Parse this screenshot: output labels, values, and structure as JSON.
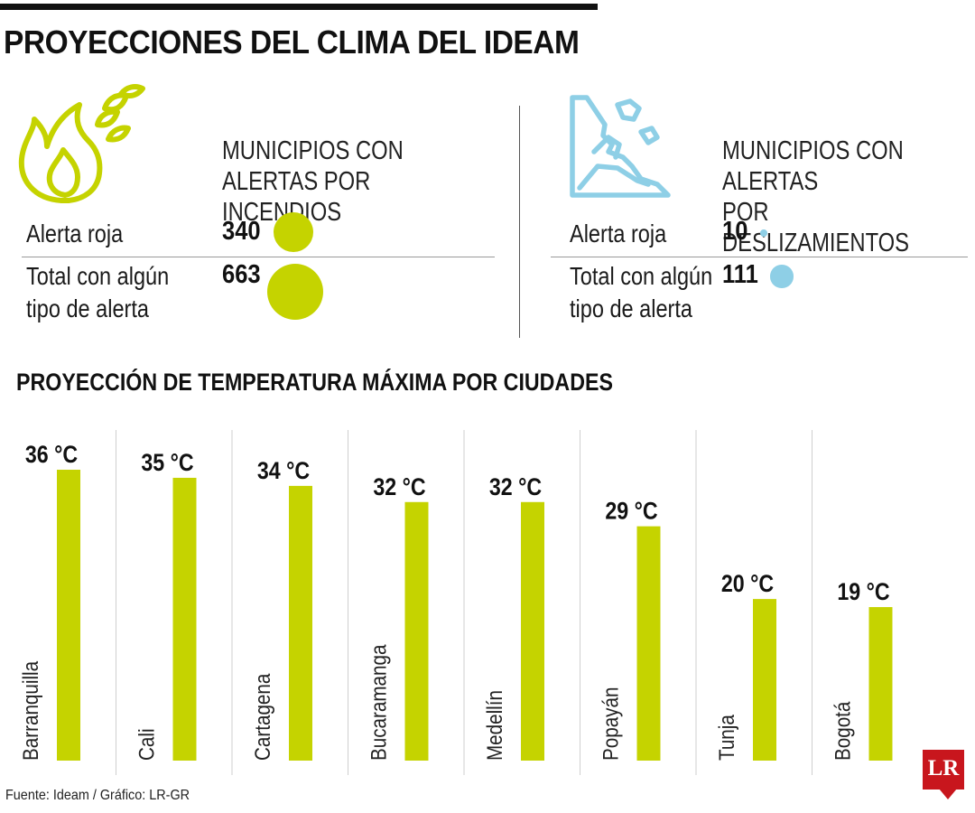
{
  "title": "PROYECCIONES DEL CLIMA DEL IDEAM",
  "colors": {
    "fire": "#c5d300",
    "landslide": "#8ecfe6",
    "divider": "#555555"
  },
  "fires": {
    "icon": "fire-icon",
    "title": "MUNICIPIOS CON\nALERTAS POR INCENDIOS",
    "rows": [
      {
        "label": "Alerta roja",
        "value": "340",
        "amount": 340
      },
      {
        "label": "Total con algún\ntipo de alerta",
        "value": "663",
        "amount": 663
      }
    ]
  },
  "landslides": {
    "icon": "landslide-icon",
    "title": "MUNICIPIOS CON ALERTAS\nPOR DESLIZAMIENTOS",
    "rows": [
      {
        "label": "Alerta roja",
        "value": "10",
        "amount": 10
      },
      {
        "label": "Total con algún\ntipo de alerta",
        "value": "111",
        "amount": 111
      }
    ]
  },
  "temperature_title": "PROYECCIÓN DE TEMPERATURA MÁXIMA POR CIUDADES",
  "chart_data": {
    "type": "bar",
    "title": "PROYECCIÓN DE TEMPERATURA MÁXIMA POR CIUDADES",
    "categories": [
      "Barranquilla",
      "Cali",
      "Cartagena",
      "Bucaramanga",
      "Medellín",
      "Popayán",
      "Tunja",
      "Bogotá"
    ],
    "values": [
      36,
      35,
      34,
      32,
      32,
      29,
      20,
      19
    ],
    "value_labels": [
      "36 °C",
      "35 °C",
      "34 °C",
      "32 °C",
      "32 °C",
      "29 °C",
      "20 °C",
      "19 °C"
    ],
    "unit": "°C",
    "ylim": [
      0,
      36
    ],
    "grid": false,
    "legend": "none",
    "bar_color": "#c5d300"
  },
  "source": "Fuente: Ideam / Gráfico: LR-GR",
  "logo": "LR"
}
